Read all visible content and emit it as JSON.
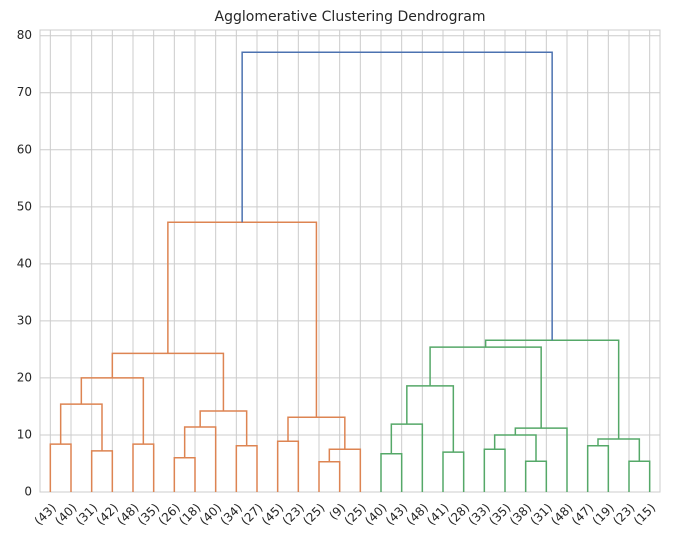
{
  "chart_data": {
    "type": "dendrogram",
    "title": "Agglomerative Clustering Dendrogram",
    "labels": [
      "(43)",
      "(40)",
      "(31)",
      "(42)",
      "(48)",
      "(35)",
      "(26)",
      "(18)",
      "(40)",
      "(34)",
      "(27)",
      "(45)",
      "(23)",
      "(25)",
      "(9)",
      "(25)",
      "(40)",
      "(43)",
      "(48)",
      "(41)",
      "(28)",
      "(33)",
      "(35)",
      "(38)",
      "(31)",
      "(48)",
      "(47)",
      "(19)",
      "(23)",
      "(15)"
    ],
    "merges": [
      {
        "children": [
          0,
          1
        ],
        "height": 8.4,
        "color": "#dd8452"
      },
      {
        "children": [
          2,
          3
        ],
        "height": 7.2,
        "color": "#dd8452"
      },
      {
        "children": [
          30,
          31
        ],
        "height": 15.4,
        "color": "#dd8452"
      },
      {
        "children": [
          4,
          5
        ],
        "height": 8.4,
        "color": "#dd8452"
      },
      {
        "children": [
          32,
          33
        ],
        "height": 20.0,
        "color": "#dd8452"
      },
      {
        "children": [
          6,
          7
        ],
        "height": 6.0,
        "color": "#dd8452"
      },
      {
        "children": [
          35,
          8
        ],
        "height": 11.4,
        "color": "#dd8452"
      },
      {
        "children": [
          9,
          10
        ],
        "height": 8.1,
        "color": "#dd8452"
      },
      {
        "children": [
          36,
          37
        ],
        "height": 14.2,
        "color": "#dd8452"
      },
      {
        "children": [
          34,
          38
        ],
        "height": 24.3,
        "color": "#dd8452"
      },
      {
        "children": [
          11,
          12
        ],
        "height": 8.9,
        "color": "#dd8452"
      },
      {
        "children": [
          13,
          14
        ],
        "height": 5.3,
        "color": "#dd8452"
      },
      {
        "children": [
          41,
          15
        ],
        "height": 7.5,
        "color": "#dd8452"
      },
      {
        "children": [
          40,
          42
        ],
        "height": 13.1,
        "color": "#dd8452"
      },
      {
        "children": [
          39,
          43
        ],
        "height": 47.3,
        "color": "#dd8452"
      },
      {
        "children": [
          16,
          17
        ],
        "height": 6.7,
        "color": "#55a868"
      },
      {
        "children": [
          45,
          18
        ],
        "height": 11.9,
        "color": "#55a868"
      },
      {
        "children": [
          19,
          20
        ],
        "height": 7.0,
        "color": "#55a868"
      },
      {
        "children": [
          46,
          47
        ],
        "height": 18.6,
        "color": "#55a868"
      },
      {
        "children": [
          21,
          22
        ],
        "height": 7.5,
        "color": "#55a868"
      },
      {
        "children": [
          23,
          24
        ],
        "height": 5.4,
        "color": "#55a868"
      },
      {
        "children": [
          49,
          50
        ],
        "height": 10.0,
        "color": "#55a868"
      },
      {
        "children": [
          51,
          25
        ],
        "height": 11.2,
        "color": "#55a868"
      },
      {
        "children": [
          48,
          52
        ],
        "height": 25.4,
        "color": "#55a868"
      },
      {
        "children": [
          26,
          27
        ],
        "height": 8.1,
        "color": "#55a868"
      },
      {
        "children": [
          28,
          29
        ],
        "height": 5.4,
        "color": "#55a868"
      },
      {
        "children": [
          54,
          55
        ],
        "height": 9.3,
        "color": "#55a868"
      },
      {
        "children": [
          53,
          56
        ],
        "height": 26.6,
        "color": "#55a868"
      },
      {
        "children": [
          44,
          57
        ],
        "height": 77.1,
        "color": "#4c72b0"
      }
    ],
    "ylim": [
      0,
      81
    ],
    "yticks": [
      0,
      10,
      20,
      30,
      40,
      50,
      60,
      70,
      80
    ],
    "grid": true
  }
}
